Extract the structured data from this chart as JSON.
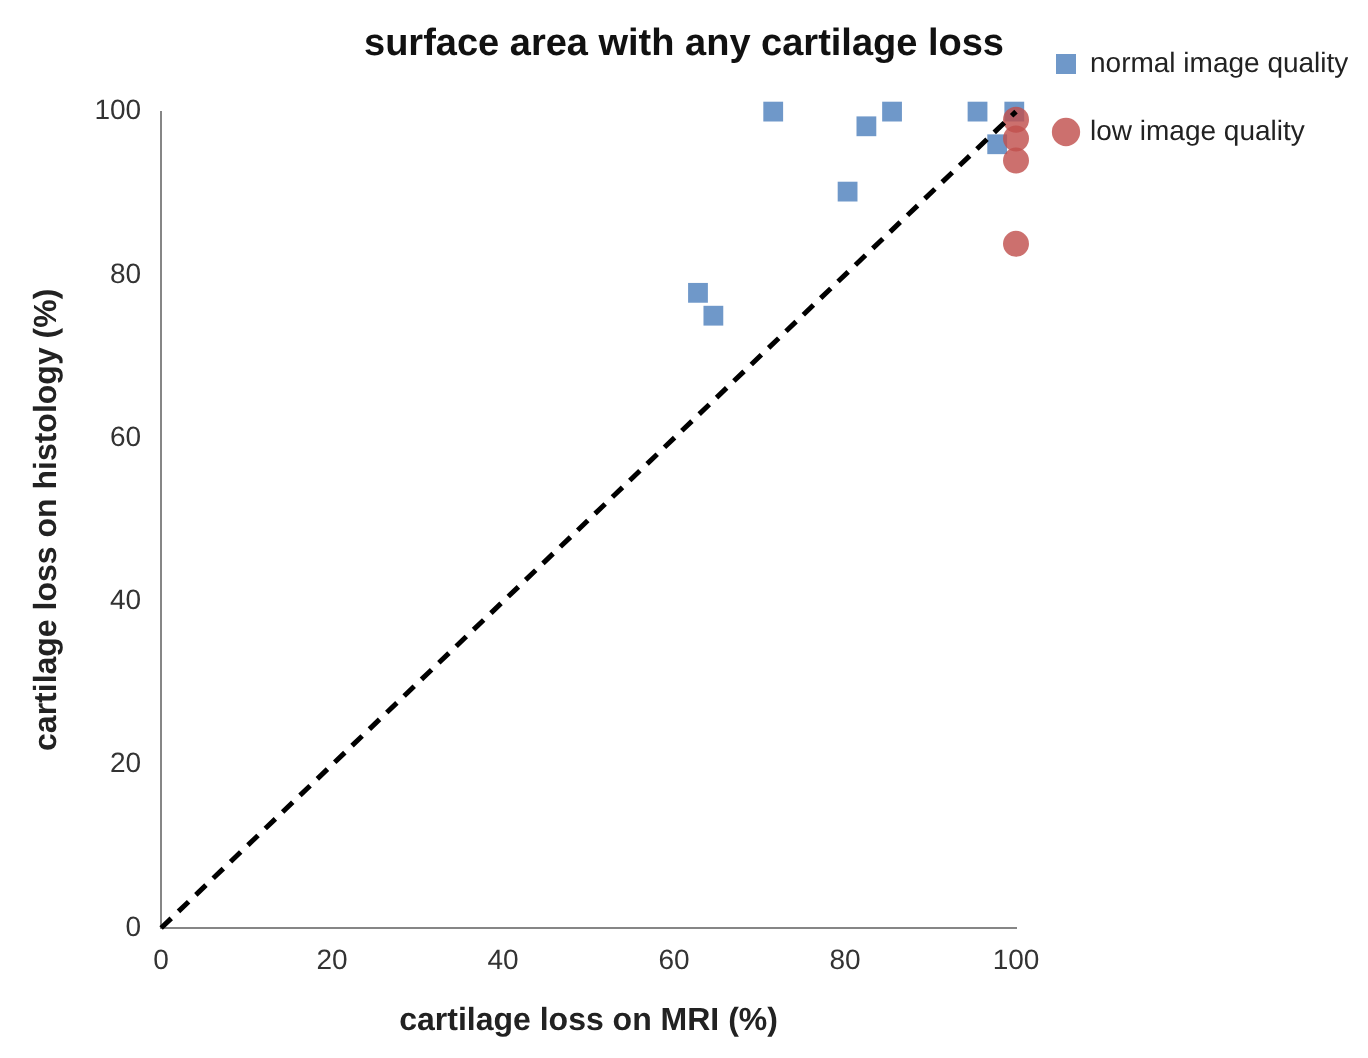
{
  "chart_data": {
    "type": "scatter",
    "title": "surface area with any cartilage loss",
    "xlabel": "cartilage loss on MRI (%)",
    "ylabel": "cartilage loss on histology (%)",
    "xlim": [
      0,
      100
    ],
    "xticks": [
      0,
      20,
      40,
      60,
      80,
      100
    ],
    "ylim": [
      0,
      100
    ],
    "yticks": [
      0,
      20,
      40,
      60,
      80,
      100
    ],
    "grid": false,
    "legend": "right",
    "series": [
      {
        "name": "normal image quality",
        "color": "#4f81bd",
        "marker": "square",
        "x": [
          71.6,
          82.5,
          85.5,
          80.3,
          62.8,
          64.6,
          95.5,
          99.8,
          97.8
        ],
        "values": [
          100,
          98.2,
          100,
          90.2,
          77.8,
          75,
          100,
          100,
          96
        ]
      },
      {
        "name": "low image quality",
        "color": "#c0504d",
        "marker": "circle",
        "x": [
          100,
          100,
          100,
          100
        ],
        "values": [
          99,
          96.7,
          94,
          83.8
        ]
      },
      {
        "type": "line",
        "color": "#000000",
        "marker": "none",
        "line_style": "dashed",
        "x": [
          0,
          100
        ],
        "values": [
          0,
          100
        ]
      }
    ]
  }
}
